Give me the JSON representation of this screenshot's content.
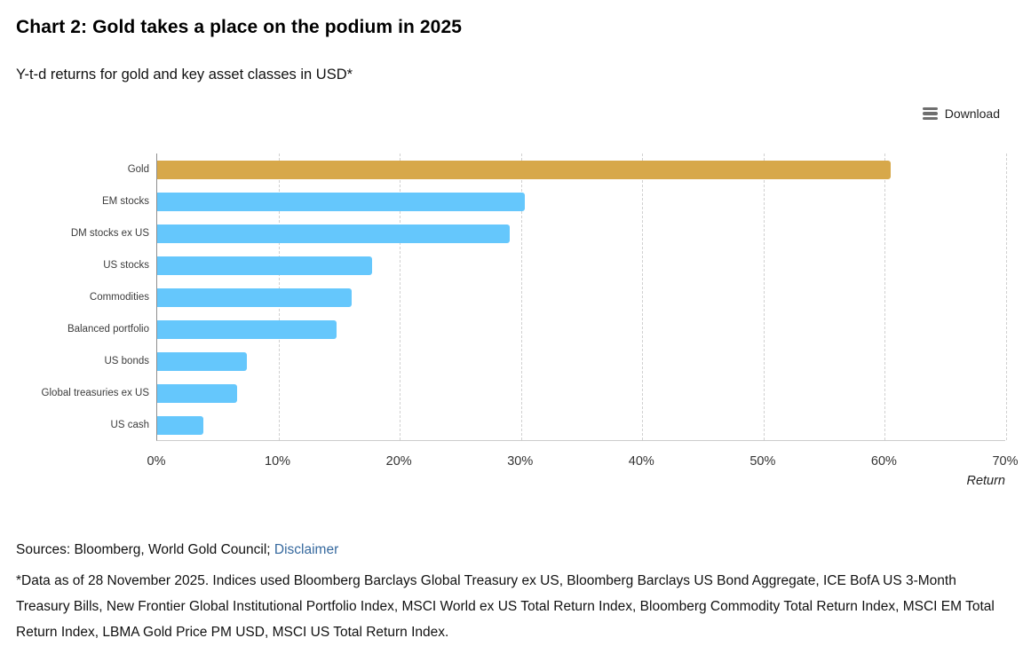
{
  "header": {
    "title": "Chart 2: Gold takes a place on the podium in 2025",
    "subtitle": "Y-t-d returns for gold and key asset classes in USD*"
  },
  "toolbar": {
    "download_label": "Download"
  },
  "chart_data": {
    "type": "bar",
    "orientation": "horizontal",
    "title": "Chart 2: Gold takes a place on the podium in 2025",
    "subtitle": "Y-t-d returns for gold and key asset classes in USD*",
    "categories": [
      "Gold",
      "EM stocks",
      "DM stocks ex US",
      "US stocks",
      "Commodities",
      "Balanced portfolio",
      "US bonds",
      "Global treasuries ex US",
      "US cash"
    ],
    "values": [
      60.5,
      30.3,
      29.1,
      17.7,
      16.0,
      14.8,
      7.4,
      6.6,
      3.8
    ],
    "unit": "%",
    "xlim": [
      0,
      70
    ],
    "x_ticks": [
      "0%",
      "10%",
      "20%",
      "30%",
      "40%",
      "50%",
      "60%",
      "70%"
    ],
    "x_tick_values": [
      0,
      10,
      20,
      30,
      40,
      50,
      60,
      70
    ],
    "x_axis_title": "Return",
    "grid": "vertical-dashed",
    "legend": "none",
    "highlight_index": 0,
    "colors": {
      "highlight_bar": "#D7A84A",
      "default_bar": "#65C7FC",
      "gridline": "#d0d0d0",
      "axis_line": "#8f8f8f"
    }
  },
  "footer": {
    "sources_prefix": "Sources: Bloomberg, World Gold Council;",
    "disclaimer_link": "Disclaimer",
    "link_color": "#36699E",
    "footnote": "*Data as of 28 November 2025. Indices used Bloomberg Barclays Global Treasury ex US, Bloomberg Barclays US Bond Aggregate, ICE BofA US 3-Month Treasury Bills, New Frontier Global Institutional Portfolio Index, MSCI World ex US Total Return Index, Bloomberg Commodity Total Return Index, MSCI EM Total Return Index, LBMA Gold Price PM USD, MSCI US Total Return Index."
  }
}
